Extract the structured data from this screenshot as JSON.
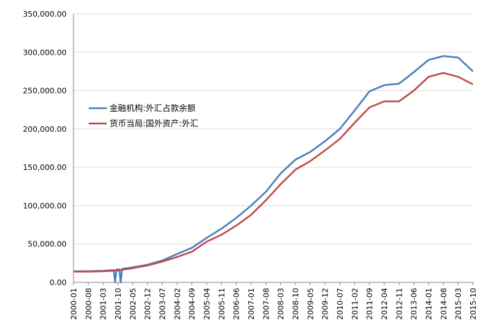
{
  "chart_data": {
    "type": "line",
    "title": "",
    "xlabel": "",
    "ylabel": "",
    "ylim": [
      0,
      350000
    ],
    "y_ticks": [
      "0.00",
      "50,000.00",
      "100,000.00",
      "150,000.00",
      "200,000.00",
      "250,000.00",
      "300,000.00",
      "350,000.00"
    ],
    "x_tick_labels": [
      "2000-01",
      "2000-08",
      "2001-03",
      "2001-10",
      "2002-05",
      "2002-12",
      "2003-07",
      "2004-02",
      "2004-09",
      "2005-04",
      "2005-11",
      "2006-06",
      "2007-01",
      "2007-08",
      "2008-03",
      "2008-10",
      "2009-05",
      "2009-12",
      "2010-07",
      "2011-02",
      "2011-09",
      "2012-04",
      "2012-11",
      "2013-06",
      "2014-01",
      "2014-08",
      "2015-03",
      "2015-10"
    ],
    "grid": "horizontal",
    "legend_position": "left-inside",
    "series": [
      {
        "name": "金融机构:外汇占款余额",
        "color": "#4a7ebb",
        "points": [
          [
            "2000-01",
            14500
          ],
          [
            "2000-08",
            14500
          ],
          [
            "2001-03",
            15000
          ],
          [
            "2001-10",
            16500
          ],
          [
            "2002-05",
            19500
          ],
          [
            "2002-12",
            23000
          ],
          [
            "2003-07",
            28500
          ],
          [
            "2004-02",
            37000
          ],
          [
            "2004-09",
            45000
          ],
          [
            "2005-04",
            58000
          ],
          [
            "2005-11",
            70000
          ],
          [
            "2006-06",
            84000
          ],
          [
            "2007-01",
            100000
          ],
          [
            "2007-08",
            118000
          ],
          [
            "2008-03",
            142000
          ],
          [
            "2008-10",
            160000
          ],
          [
            "2009-05",
            170000
          ],
          [
            "2009-12",
            184000
          ],
          [
            "2010-07",
            200000
          ],
          [
            "2011-02",
            224000
          ],
          [
            "2011-09",
            249000
          ],
          [
            "2012-04",
            257000
          ],
          [
            "2012-11",
            259000
          ],
          [
            "2013-06",
            274000
          ],
          [
            "2014-01",
            290000
          ],
          [
            "2014-08",
            295000
          ],
          [
            "2015-03",
            293000
          ],
          [
            "2015-10",
            275000
          ]
        ]
      },
      {
        "name": "货币当局:国外资产:外汇",
        "color": "#be4b48",
        "points": [
          [
            "2000-01",
            14000
          ],
          [
            "2000-08",
            14000
          ],
          [
            "2001-03",
            14500
          ],
          [
            "2001-10",
            15500
          ],
          [
            "2002-05",
            18500
          ],
          [
            "2002-12",
            22000
          ],
          [
            "2003-07",
            27000
          ],
          [
            "2004-02",
            33000
          ],
          [
            "2004-09",
            40000
          ],
          [
            "2005-04",
            53000
          ],
          [
            "2005-11",
            62000
          ],
          [
            "2006-06",
            74000
          ],
          [
            "2007-01",
            88000
          ],
          [
            "2007-08",
            107000
          ],
          [
            "2008-03",
            128000
          ],
          [
            "2008-10",
            147000
          ],
          [
            "2009-05",
            158000
          ],
          [
            "2009-12",
            172000
          ],
          [
            "2010-07",
            187000
          ],
          [
            "2011-02",
            208000
          ],
          [
            "2011-09",
            228000
          ],
          [
            "2012-04",
            236000
          ],
          [
            "2012-11",
            236000
          ],
          [
            "2013-06",
            250000
          ],
          [
            "2014-01",
            268000
          ],
          [
            "2014-08",
            273000
          ],
          [
            "2015-03",
            268000
          ],
          [
            "2015-10",
            258000
          ]
        ]
      }
    ],
    "dip_annotation": {
      "series_index": 0,
      "at": "2001-10",
      "values": [
        0,
        16500,
        0
      ]
    }
  }
}
